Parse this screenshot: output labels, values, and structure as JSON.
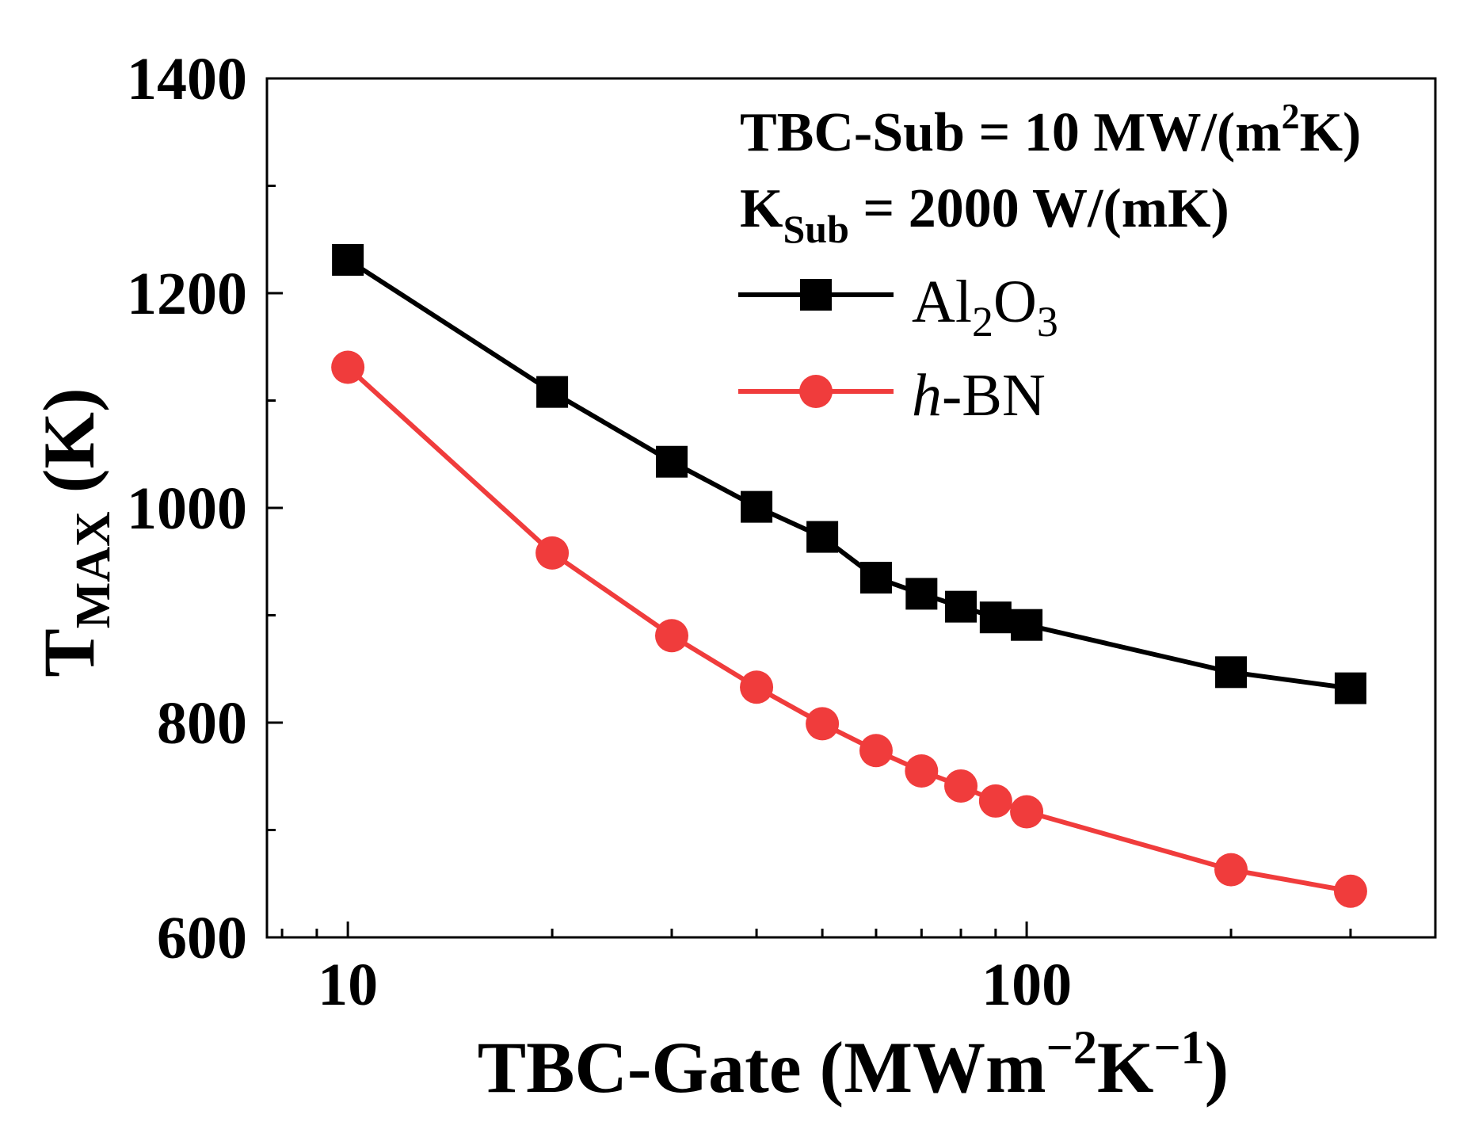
{
  "chart_data": {
    "type": "line",
    "xscale": "log",
    "xlim": [
      7.6,
      400
    ],
    "ylim": [
      600,
      1400
    ],
    "x": [
      10,
      20,
      30,
      40,
      50,
      60,
      70,
      80,
      90,
      100,
      200,
      300
    ],
    "series": [
      {
        "name": "Al2O3",
        "color": "#000000",
        "marker": "square",
        "values": [
          1231,
          1108,
          1043,
          1001,
          973,
          935,
          920,
          908,
          898,
          891,
          847,
          832
        ]
      },
      {
        "name": "h-BN",
        "color": "#f03c3c",
        "marker": "circle",
        "values": [
          1131,
          958,
          881,
          833,
          799,
          774,
          755,
          741,
          727,
          717,
          663,
          643
        ]
      }
    ],
    "xticks": [
      {
        "value": 10,
        "label": "10"
      },
      {
        "value": 100,
        "label": "100"
      }
    ],
    "yticks": [
      {
        "value": 600,
        "label": "600"
      },
      {
        "value": 800,
        "label": "800"
      },
      {
        "value": 1000,
        "label": "1000"
      },
      {
        "value": 1200,
        "label": "1200"
      },
      {
        "value": 1400,
        "label": "1400"
      }
    ],
    "xlabel": {
      "main": "TBC-Gate (MWm",
      "sup1": "−2",
      "mid": "K",
      "sup2": "−1",
      "end": ")"
    },
    "ylabel": {
      "main": "T",
      "sub": "MAX",
      "end": " (K)"
    },
    "annotations": {
      "line1": {
        "a": "TBC-Sub = 10 MW/(m",
        "sup": "2",
        "b": "K)"
      },
      "line2": {
        "a": "K",
        "sub": "Sub",
        "b": " = 2000 W/(mK)"
      }
    },
    "legend": {
      "placement": "top-right",
      "al2o3": {
        "a": "Al",
        "s1": "2",
        "b": "O",
        "s2": "3"
      },
      "hbn": {
        "a": "h",
        "b": "-BN"
      }
    },
    "grid": false
  }
}
